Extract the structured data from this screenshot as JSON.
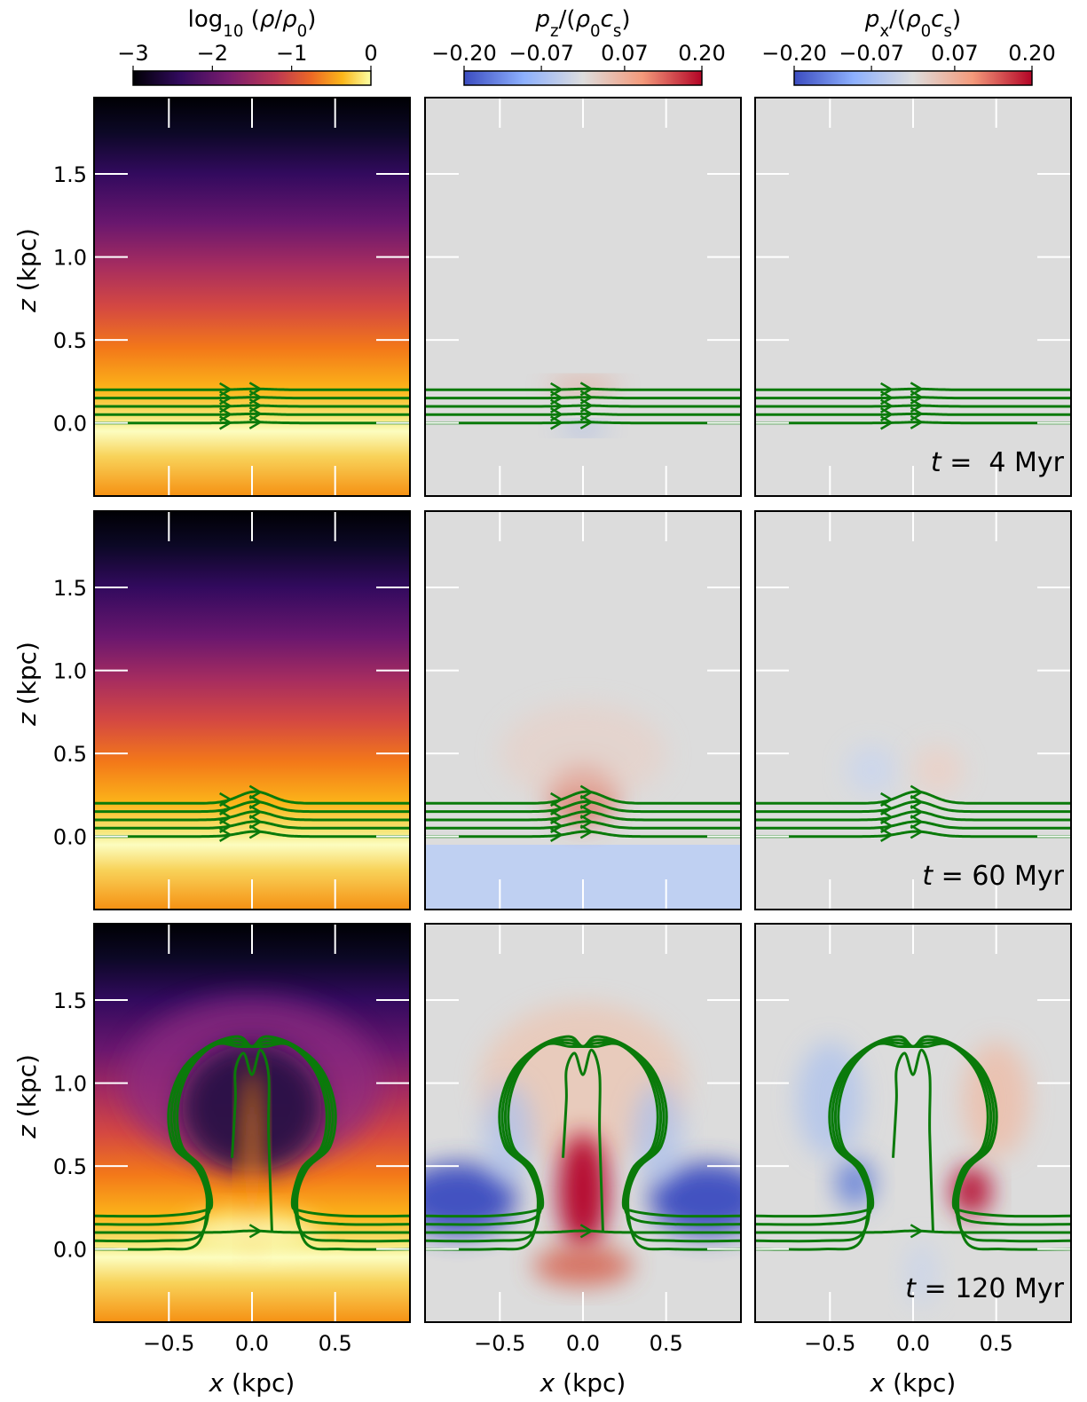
{
  "chart_data": {
    "type": "heatmap-grid",
    "colorbars": [
      {
        "title": [
          {
            "text": "log"
          },
          {
            "sub": "10"
          },
          {
            "text": " ("
          },
          {
            "italic": "ρ"
          },
          {
            "text": "/"
          },
          {
            "italic": "ρ"
          },
          {
            "sub": "0"
          },
          {
            "text": ")"
          }
        ],
        "lim": [
          -3,
          0
        ],
        "ticks": [
          {
            "value": -3,
            "label": "−3"
          },
          {
            "value": -2,
            "label": "−2"
          },
          {
            "value": -1,
            "label": "−1"
          },
          0
        ],
        "colormap": "inferno"
      },
      {
        "title": [
          {
            "italic": "p"
          },
          {
            "sub": "z"
          },
          {
            "text": "/("
          },
          {
            "italic": "ρ"
          },
          {
            "sub": "0"
          },
          {
            "italic": "c"
          },
          {
            "sub": "s"
          },
          {
            "text": ")"
          }
        ],
        "lim": [
          -0.2,
          0.2
        ],
        "ticks": [
          {
            "value": -0.2,
            "label": "−0.20"
          },
          {
            "value": -0.07,
            "label": "−0.07"
          },
          {
            "value": 0.07,
            "label": "0.07"
          },
          {
            "value": 0.2,
            "label": "0.20"
          }
        ],
        "colormap": "coolwarm"
      },
      {
        "title": [
          {
            "italic": "p"
          },
          {
            "sub": "x"
          },
          {
            "text": "/("
          },
          {
            "italic": "ρ"
          },
          {
            "sub": "0"
          },
          {
            "italic": "c"
          },
          {
            "sub": "s"
          },
          {
            "text": ")"
          }
        ],
        "lim": [
          -0.2,
          0.2
        ],
        "ticks": [
          {
            "value": -0.2,
            "label": "−0.20"
          },
          {
            "value": -0.07,
            "label": "−0.07"
          },
          {
            "value": 0.07,
            "label": "0.07"
          },
          {
            "value": 0.2,
            "label": "0.20"
          }
        ],
        "colormap": "coolwarm"
      }
    ],
    "xlim": [
      -0.95,
      0.95
    ],
    "ylim": [
      -0.44,
      1.96
    ],
    "xticks": [
      {
        "value": -0.5,
        "label": "−0.5"
      },
      {
        "value": 0,
        "label": "0.0"
      },
      0.5
    ],
    "yticks": [
      {
        "value": 0,
        "label": "0.0"
      },
      0.5,
      {
        "value": 1,
        "label": "1.0"
      },
      1.5
    ],
    "xlabel": [
      {
        "italic": "x"
      },
      {
        "text": " (kpc)"
      }
    ],
    "ylabel": [
      {
        "italic": "z"
      },
      {
        "text": " (kpc)"
      }
    ],
    "times": [
      [
        {
          "italic": "t"
        },
        {
          "text": " =  4 Myr"
        }
      ],
      [
        {
          "italic": "t"
        },
        {
          "text": " = 60 Myr"
        }
      ],
      [
        {
          "italic": "t"
        },
        {
          "text": " = 120 Myr"
        }
      ]
    ]
  }
}
